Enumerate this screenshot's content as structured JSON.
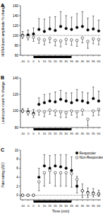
{
  "chart_data": [
    {
      "type": "scatter",
      "panel_label": "A",
      "y_label": "MSNA burst amplitude % change",
      "x": [
        -10,
        -5,
        0,
        5,
        10,
        15,
        20,
        25,
        30,
        35,
        40,
        45,
        50,
        55,
        60
      ],
      "xlim": [
        -12,
        62
      ],
      "xticks": [
        -10,
        -5,
        0,
        5,
        10,
        15,
        20,
        25,
        30,
        35,
        40,
        45,
        50,
        55,
        60
      ],
      "ylim": [
        60,
        160
      ],
      "yticks": [
        60,
        80,
        100,
        120,
        140,
        160
      ],
      "reference_line": 100,
      "stimulus": [
        0,
        35
      ],
      "series": [
        {
          "color": "#000000",
          "marker": "filled",
          "values": [
            100,
            101,
            103,
            112,
            108,
            113,
            110,
            118,
            114,
            112,
            116,
            118,
            111,
            113,
            109
          ],
          "errors": [
            8,
            10,
            12,
            22,
            25,
            24,
            28,
            30,
            26,
            25,
            28,
            30,
            24,
            26,
            22
          ]
        },
        {
          "color": "#000000",
          "marker": "open",
          "values": [
            99,
            97,
            96,
            93,
            91,
            94,
            90,
            89,
            92,
            91,
            90,
            95,
            88,
            93,
            92
          ],
          "errors": [
            5,
            6,
            8,
            9,
            10,
            9,
            11,
            12,
            10,
            11,
            12,
            10,
            14,
            10,
            11
          ]
        }
      ]
    },
    {
      "type": "scatter",
      "panel_label": "B",
      "y_label": "Leukocyte count % change",
      "x": [
        -10,
        -5,
        0,
        5,
        10,
        15,
        20,
        25,
        30,
        35,
        40,
        45,
        50,
        55,
        60
      ],
      "xlim": [
        -12,
        62
      ],
      "xticks": [
        -10,
        -5,
        0,
        5,
        10,
        15,
        20,
        25,
        30,
        35,
        40,
        45,
        50,
        55,
        60
      ],
      "ylim": [
        80,
        140
      ],
      "yticks": [
        80,
        100,
        120,
        140
      ],
      "reference_line": 100,
      "stimulus": [
        0,
        35
      ],
      "series": [
        {
          "color": "#000000",
          "marker": "filled",
          "values": [
            100,
            99,
            97,
            108,
            110,
            112,
            111,
            114,
            112,
            110,
            113,
            112,
            110,
            115,
            112
          ],
          "errors": [
            3,
            4,
            5,
            8,
            10,
            9,
            12,
            11,
            10,
            12,
            13,
            11,
            12,
            14,
            12
          ]
        },
        {
          "color": "#000000",
          "marker": "open",
          "values": [
            100,
            98,
            96,
            100,
            99,
            101,
            100,
            99,
            98,
            100,
            99,
            101,
            90,
            100,
            102
          ],
          "errors": [
            2,
            3,
            4,
            5,
            6,
            5,
            6,
            7,
            6,
            5,
            7,
            6,
            8,
            6,
            7
          ]
        }
      ]
    },
    {
      "type": "scatter",
      "panel_label": "C",
      "y_label": "Pain rating (/10)",
      "x_label": "Time (min)",
      "x": [
        -10,
        -5,
        0,
        5,
        10,
        15,
        20,
        25,
        30,
        35,
        40,
        45,
        50,
        55,
        60
      ],
      "xlim": [
        -12,
        62
      ],
      "xticks": [
        -10,
        -5,
        0,
        5,
        10,
        15,
        20,
        25,
        30,
        35,
        40,
        45,
        50,
        55,
        60
      ],
      "ylim": [
        -1,
        10
      ],
      "yticks": [
        0,
        2,
        4,
        6,
        8,
        10
      ],
      "reference_line": 0,
      "stimulus": [
        0,
        35
      ],
      "legend": "upper right",
      "series": [
        {
          "name": "Responder",
          "color": "#000000",
          "marker": "filled",
          "values": [
            0,
            0,
            0,
            4,
            6.5,
            6,
            6.5,
            6.3,
            6,
            5.5,
            2,
            1,
            0.6,
            0.5,
            0.3
          ],
          "errors": [
            0,
            0,
            0,
            2,
            2.5,
            2.8,
            2.5,
            2.7,
            3,
            3,
            2.2,
            1.5,
            1,
            1,
            0.8
          ]
        },
        {
          "name": "Non-Responder",
          "color": "#000000",
          "marker": "open",
          "values": [
            0,
            0,
            0,
            3,
            5,
            5.5,
            5,
            5,
            5,
            4.8,
            3.5,
            1,
            0.5,
            0.4,
            0.3
          ],
          "errors": [
            0,
            0,
            0,
            2,
            3,
            2.8,
            3,
            3,
            3,
            3,
            3,
            1.5,
            1,
            0.8,
            0.6
          ]
        }
      ]
    }
  ]
}
